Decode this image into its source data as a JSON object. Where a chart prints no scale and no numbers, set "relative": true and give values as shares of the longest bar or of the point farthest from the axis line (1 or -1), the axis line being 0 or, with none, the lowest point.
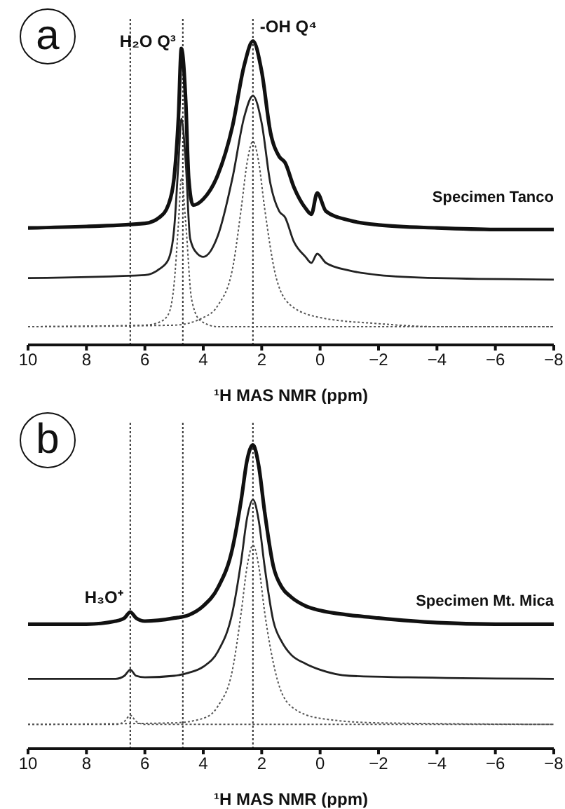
{
  "chart_data": [
    {
      "type": "line",
      "title": "a",
      "xlabel": "¹H MAS NMR (ppm)",
      "relative": true,
      "xlim": [
        10,
        -8
      ],
      "xticks": [
        10,
        8,
        6,
        4,
        2,
        0,
        {
          "value": -2,
          "label": "−2"
        },
        {
          "value": -4,
          "label": "−4"
        },
        {
          "value": -6,
          "label": "−6"
        },
        {
          "value": -8,
          "label": "−8"
        }
      ],
      "annotations": [
        {
          "text": "H₂O Q³",
          "x": 4.7,
          "y": 1.0
        },
        {
          "text": "-OH Q⁴",
          "x": 2.3,
          "y": 1.05
        },
        "Specimen Tanco"
      ],
      "ref_lines": [
        {
          "axis": "x",
          "value": 6.5,
          "line_style": "dotted"
        },
        {
          "axis": "x",
          "value": 4.7,
          "line_style": "dotted"
        },
        {
          "axis": "x",
          "value": 2.3,
          "line_style": "dotted"
        }
      ],
      "series": [
        {
          "color": "#111111",
          "line_style": "solid",
          "x": [
            10,
            8,
            6,
            5.5,
            5.2,
            5.0,
            4.85,
            4.75,
            4.6,
            4.5,
            4.35,
            4.0,
            3.5,
            3.0,
            2.6,
            2.3,
            2.0,
            1.7,
            1.4,
            1.2,
            0.9,
            0.5,
            0.3,
            0.1,
            -0.2,
            -1,
            -2,
            -4,
            -6,
            -8
          ],
          "values": [
            0.385,
            0.39,
            0.4,
            0.42,
            0.46,
            0.55,
            0.75,
            0.976,
            0.8,
            0.55,
            0.46,
            0.48,
            0.56,
            0.72,
            0.92,
            1.0,
            0.9,
            0.7,
            0.62,
            0.6,
            0.52,
            0.45,
            0.43,
            0.5,
            0.44,
            0.41,
            0.395,
            0.385,
            0.38,
            0.38
          ]
        },
        {
          "color": "#222222",
          "line_style": "solid",
          "x": [
            10,
            6,
            5.5,
            5.2,
            5.0,
            4.85,
            4.75,
            4.6,
            4.45,
            4.2,
            4.0,
            3.5,
            3.0,
            2.6,
            2.3,
            2.0,
            1.7,
            1.4,
            1.2,
            0.9,
            0.5,
            0.3,
            0.1,
            -0.2,
            -1,
            -2,
            -4,
            -8
          ],
          "values": [
            0.22,
            0.23,
            0.25,
            0.28,
            0.38,
            0.6,
            0.745,
            0.6,
            0.35,
            0.3,
            0.29,
            0.36,
            0.55,
            0.75,
            0.82,
            0.73,
            0.53,
            0.44,
            0.42,
            0.34,
            0.29,
            0.27,
            0.3,
            0.27,
            0.245,
            0.23,
            0.22,
            0.215
          ]
        },
        {
          "color": "#555555",
          "line_style": "dotted",
          "x": [
            10,
            6,
            5.5,
            5.2,
            5.0,
            4.85,
            4.75,
            4.6,
            4.4,
            4.1,
            3.5,
            -8
          ],
          "values": [
            0.06,
            0.065,
            0.075,
            0.1,
            0.2,
            0.4,
            0.55,
            0.4,
            0.15,
            0.08,
            0.06,
            0.06
          ]
        },
        {
          "color": "#555555",
          "line_style": "dotted",
          "x": [
            10,
            5,
            4,
            3.5,
            3.0,
            2.7,
            2.5,
            2.3,
            2.1,
            1.9,
            1.5,
            1,
            0,
            -2,
            -4,
            -8
          ],
          "values": [
            0.06,
            0.065,
            0.09,
            0.13,
            0.25,
            0.45,
            0.6,
            0.67,
            0.6,
            0.45,
            0.22,
            0.13,
            0.09,
            0.07,
            0.06,
            0.06
          ]
        }
      ]
    },
    {
      "type": "line",
      "title": "b",
      "xlabel": "¹H MAS NMR (ppm)",
      "relative": true,
      "xlim": [
        10,
        -8
      ],
      "xticks": [
        10,
        8,
        6,
        4,
        2,
        0,
        {
          "value": -2,
          "label": "−2"
        },
        {
          "value": -4,
          "label": "−4"
        },
        {
          "value": -6,
          "label": "−6"
        },
        {
          "value": -8,
          "label": "−8"
        }
      ],
      "annotations": [
        {
          "text": "H₃O⁺",
          "x": 6.5,
          "y": 0.5
        },
        "Specimen Mt. Mica"
      ],
      "ref_lines": [
        {
          "axis": "x",
          "value": 6.5,
          "line_style": "dotted"
        },
        {
          "axis": "x",
          "value": 4.7,
          "line_style": "dotted"
        },
        {
          "axis": "x",
          "value": 2.3,
          "line_style": "dotted"
        }
      ],
      "series": [
        {
          "color": "#111111",
          "line_style": "solid",
          "x": [
            10,
            8,
            7,
            6.7,
            6.5,
            6.3,
            6.0,
            5,
            4.5,
            4,
            3.5,
            3.0,
            2.7,
            2.5,
            2.3,
            2.1,
            1.9,
            1.6,
            1.3,
            1.0,
            0.5,
            0,
            -1,
            -2,
            -4,
            -6,
            -8
          ],
          "values": [
            0.41,
            0.41,
            0.42,
            0.43,
            0.45,
            0.43,
            0.42,
            0.43,
            0.44,
            0.47,
            0.53,
            0.66,
            0.82,
            0.95,
            1.0,
            0.93,
            0.78,
            0.6,
            0.53,
            0.5,
            0.47,
            0.455,
            0.44,
            0.43,
            0.415,
            0.41,
            0.41
          ]
        },
        {
          "color": "#222222",
          "line_style": "solid",
          "x": [
            10,
            7,
            6.7,
            6.5,
            6.3,
            6,
            5,
            4.5,
            4,
            3.5,
            3.0,
            2.7,
            2.5,
            2.3,
            2.1,
            1.9,
            1.6,
            1.3,
            1,
            0.5,
            0,
            -1,
            -3,
            -8
          ],
          "values": [
            0.23,
            0.23,
            0.24,
            0.26,
            0.24,
            0.235,
            0.24,
            0.25,
            0.27,
            0.32,
            0.45,
            0.62,
            0.76,
            0.82,
            0.75,
            0.6,
            0.42,
            0.35,
            0.31,
            0.28,
            0.26,
            0.24,
            0.235,
            0.23
          ]
        },
        {
          "color": "#555555",
          "line_style": "dotted",
          "x": [
            10,
            7,
            6.7,
            6.5,
            6.3,
            6,
            -8
          ],
          "values": [
            0.08,
            0.08,
            0.09,
            0.11,
            0.09,
            0.08,
            0.08
          ]
        },
        {
          "color": "#555555",
          "line_style": "dotted",
          "x": [
            10,
            5,
            4,
            3.5,
            3,
            2.7,
            2.5,
            2.3,
            2.1,
            1.9,
            1.5,
            1,
            0,
            -2,
            -8
          ],
          "values": [
            0.08,
            0.085,
            0.1,
            0.14,
            0.26,
            0.45,
            0.6,
            0.67,
            0.6,
            0.45,
            0.24,
            0.14,
            0.1,
            0.085,
            0.08
          ]
        }
      ]
    }
  ]
}
